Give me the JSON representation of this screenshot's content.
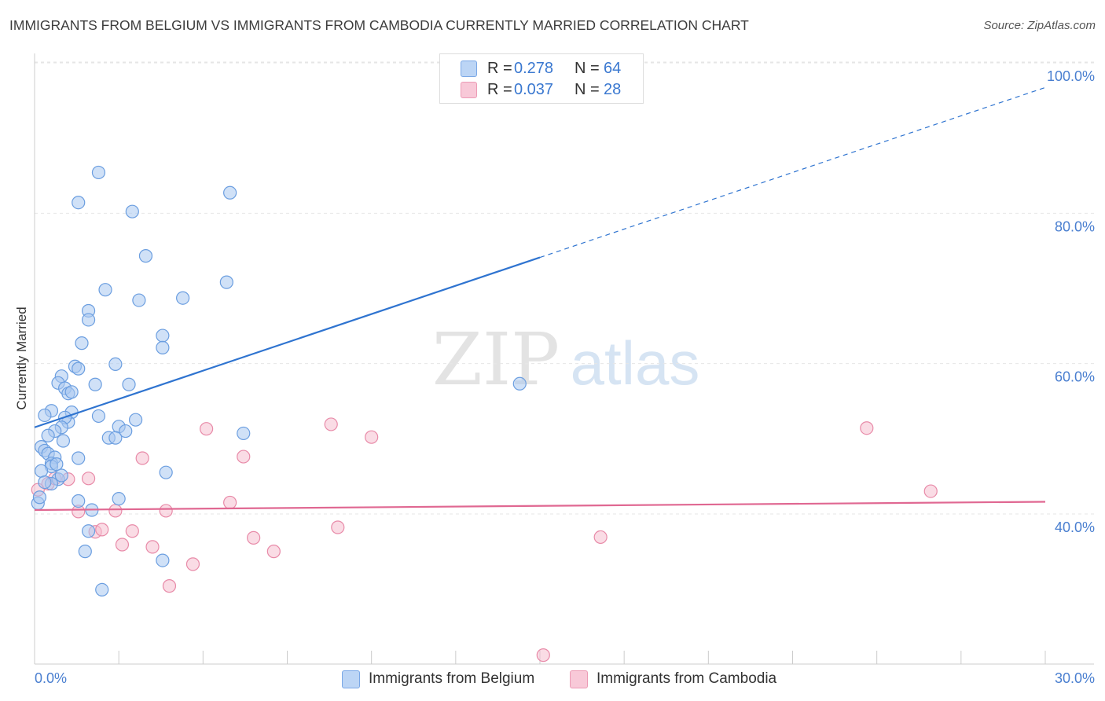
{
  "title": "IMMIGRANTS FROM BELGIUM VS IMMIGRANTS FROM CAMBODIA CURRENTLY MARRIED CORRELATION CHART",
  "source": "Source: ZipAtlas.com",
  "watermark": {
    "zip": "ZIP",
    "atlas": "atlas"
  },
  "legend": {
    "r_label": "R =",
    "n_label": "N =",
    "rows": [
      {
        "r": "0.278",
        "n": "64"
      },
      {
        "r": "0.037",
        "n": "28"
      }
    ]
  },
  "colors": {
    "belgium_fill": "#a9c8f0",
    "belgium_stroke": "#6b9ee0",
    "belgium_line": "#2f74d0",
    "cambodia_fill": "#f6bfd0",
    "cambodia_stroke": "#e88aa8",
    "cambodia_line": "#e06892",
    "tick_label": "#4a7fd0"
  },
  "chart_data": {
    "type": "scatter",
    "title": "IMMIGRANTS FROM BELGIUM VS IMMIGRANTS FROM CAMBODIA CURRENTLY MARRIED CORRELATION CHART",
    "xlabel": "",
    "ylabel": "Currently Married",
    "xlim": [
      0,
      30
    ],
    "ylim": [
      22,
      103
    ],
    "x_tick_labels": [
      "0.0%",
      "30.0%"
    ],
    "y_ticks": [
      40,
      60,
      80,
      100
    ],
    "y_tick_labels": [
      "40.0%",
      "60.0%",
      "80.0%",
      "100.0%"
    ],
    "grid": true,
    "series": [
      {
        "name": "Immigrants from Belgium",
        "r": 0.278,
        "n": 64,
        "trend": {
          "x0": 0,
          "y0": 53.3,
          "x1": 15,
          "y1": 75.9,
          "dash_to_x": 30,
          "dash_to_y": 98.5
        },
        "points": [
          [
            1.9,
            87.2
          ],
          [
            1.3,
            83.2
          ],
          [
            2.9,
            82.0
          ],
          [
            5.8,
            84.5
          ],
          [
            3.3,
            76.1
          ],
          [
            2.1,
            71.6
          ],
          [
            1.6,
            68.8
          ],
          [
            1.6,
            67.6
          ],
          [
            3.1,
            70.2
          ],
          [
            4.4,
            70.5
          ],
          [
            5.7,
            72.6
          ],
          [
            1.4,
            64.5
          ],
          [
            3.8,
            65.5
          ],
          [
            3.8,
            63.9
          ],
          [
            2.4,
            61.7
          ],
          [
            1.2,
            61.4
          ],
          [
            1.3,
            61.1
          ],
          [
            1.8,
            59.0
          ],
          [
            2.8,
            59.0
          ],
          [
            0.8,
            60.1
          ],
          [
            0.7,
            59.2
          ],
          [
            0.9,
            58.5
          ],
          [
            1.0,
            57.8
          ],
          [
            1.1,
            58.0
          ],
          [
            14.4,
            59.1
          ],
          [
            0.5,
            55.5
          ],
          [
            0.3,
            54.9
          ],
          [
            1.1,
            55.3
          ],
          [
            1.0,
            54.0
          ],
          [
            1.9,
            54.8
          ],
          [
            0.9,
            54.6
          ],
          [
            3.0,
            54.3
          ],
          [
            2.5,
            53.4
          ],
          [
            0.8,
            53.3
          ],
          [
            0.6,
            52.8
          ],
          [
            2.7,
            52.8
          ],
          [
            0.4,
            52.2
          ],
          [
            2.2,
            51.9
          ],
          [
            2.4,
            51.9
          ],
          [
            6.2,
            52.5
          ],
          [
            0.85,
            51.5
          ],
          [
            0.2,
            50.7
          ],
          [
            0.3,
            50.2
          ],
          [
            0.4,
            49.8
          ],
          [
            0.6,
            49.3
          ],
          [
            1.3,
            49.2
          ],
          [
            0.5,
            48.5
          ],
          [
            0.5,
            48.1
          ],
          [
            0.65,
            48.4
          ],
          [
            0.2,
            47.5
          ],
          [
            3.9,
            47.3
          ],
          [
            0.7,
            46.4
          ],
          [
            0.5,
            45.8
          ],
          [
            1.3,
            43.5
          ],
          [
            2.5,
            43.8
          ],
          [
            1.7,
            42.3
          ],
          [
            0.1,
            43.2
          ],
          [
            0.8,
            46.9
          ],
          [
            1.6,
            39.5
          ],
          [
            1.5,
            36.8
          ],
          [
            3.8,
            35.6
          ],
          [
            2.0,
            31.7
          ],
          [
            0.3,
            46.0
          ],
          [
            0.15,
            44.0
          ]
        ]
      },
      {
        "name": "Immigrants from Cambodia",
        "r": 0.037,
        "n": 28,
        "trend": {
          "x0": 0,
          "y0": 42.3,
          "x1": 30,
          "y1": 43.4
        },
        "points": [
          [
            0.1,
            45.0
          ],
          [
            0.4,
            45.8
          ],
          [
            0.6,
            46.5
          ],
          [
            1.0,
            46.4
          ],
          [
            1.6,
            46.5
          ],
          [
            1.3,
            42.1
          ],
          [
            2.4,
            42.2
          ],
          [
            3.2,
            49.2
          ],
          [
            3.9,
            42.2
          ],
          [
            5.1,
            53.1
          ],
          [
            5.8,
            43.3
          ],
          [
            6.2,
            49.4
          ],
          [
            8.8,
            53.7
          ],
          [
            10.0,
            52.0
          ],
          [
            1.8,
            39.4
          ],
          [
            2.0,
            39.7
          ],
          [
            2.9,
            39.5
          ],
          [
            2.6,
            37.7
          ],
          [
            3.5,
            37.4
          ],
          [
            6.5,
            38.6
          ],
          [
            7.1,
            36.8
          ],
          [
            9.0,
            40.0
          ],
          [
            4.7,
            35.1
          ],
          [
            4.0,
            32.2
          ],
          [
            16.8,
            38.7
          ],
          [
            24.7,
            53.2
          ],
          [
            26.6,
            44.8
          ],
          [
            15.1,
            23.0
          ]
        ]
      }
    ]
  }
}
